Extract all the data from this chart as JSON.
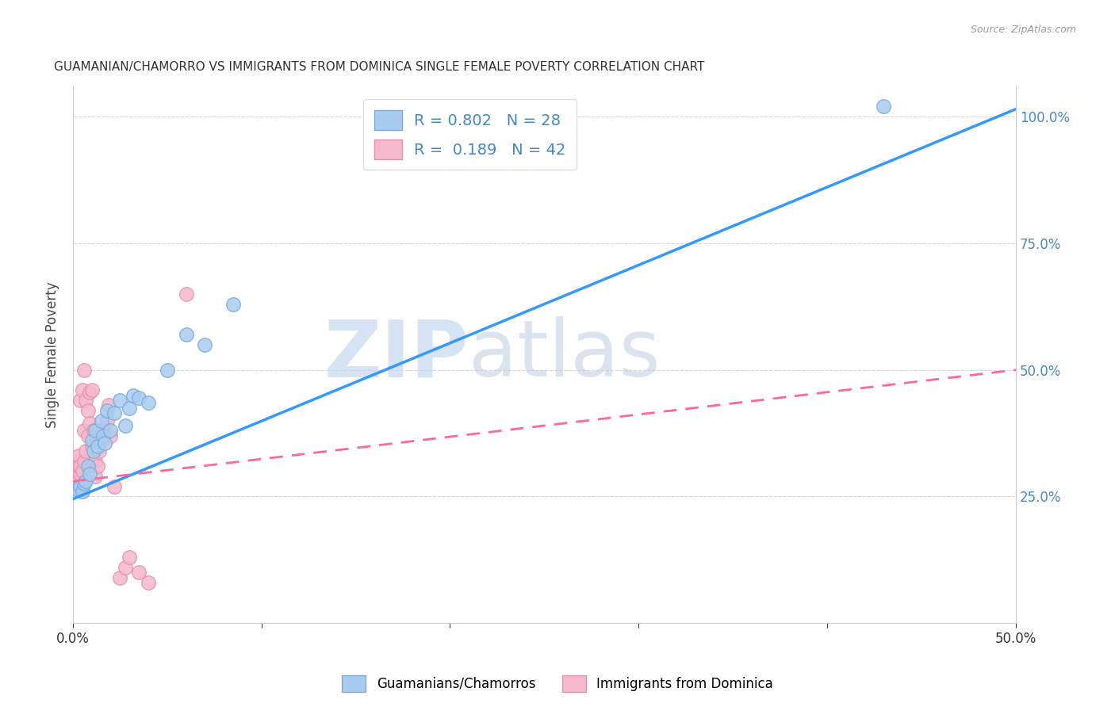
{
  "title": "GUAMANIAN/CHAMORRO VS IMMIGRANTS FROM DOMINICA SINGLE FEMALE POVERTY CORRELATION CHART",
  "source": "Source: ZipAtlas.com",
  "ylabel": "Single Female Poverty",
  "blue_R": 0.802,
  "blue_N": 28,
  "pink_R": 0.189,
  "pink_N": 42,
  "blue_color": "#A8CCF0",
  "blue_edge": "#7AAADA",
  "pink_color": "#F5B8CC",
  "pink_edge": "#E890AA",
  "blue_line_color": "#3399FF",
  "pink_line_color": "#FF6699",
  "watermark_zip": "ZIP",
  "watermark_atlas": "atlas",
  "legend_blue_label": "Guamanians/Chamorros",
  "legend_pink_label": "Immigrants from Dominica",
  "blue_x": [
    0.002,
    0.004,
    0.005,
    0.006,
    0.007,
    0.008,
    0.009,
    0.01,
    0.011,
    0.012,
    0.013,
    0.015,
    0.016,
    0.017,
    0.018,
    0.02,
    0.022,
    0.025,
    0.028,
    0.03,
    0.032,
    0.035,
    0.04,
    0.05,
    0.06,
    0.07,
    0.085,
    0.43
  ],
  "blue_y": [
    0.265,
    0.27,
    0.26,
    0.275,
    0.28,
    0.31,
    0.295,
    0.36,
    0.34,
    0.38,
    0.35,
    0.4,
    0.37,
    0.355,
    0.42,
    0.38,
    0.415,
    0.44,
    0.39,
    0.425,
    0.45,
    0.445,
    0.435,
    0.5,
    0.57,
    0.55,
    0.63,
    1.02
  ],
  "pink_x": [
    0.001,
    0.001,
    0.002,
    0.002,
    0.002,
    0.003,
    0.003,
    0.003,
    0.004,
    0.004,
    0.004,
    0.005,
    0.005,
    0.005,
    0.006,
    0.006,
    0.006,
    0.007,
    0.007,
    0.008,
    0.008,
    0.009,
    0.009,
    0.01,
    0.01,
    0.011,
    0.012,
    0.012,
    0.013,
    0.014,
    0.015,
    0.016,
    0.018,
    0.019,
    0.02,
    0.022,
    0.025,
    0.028,
    0.03,
    0.035,
    0.04,
    0.06
  ],
  "pink_y": [
    0.27,
    0.285,
    0.29,
    0.3,
    0.32,
    0.28,
    0.31,
    0.33,
    0.295,
    0.31,
    0.44,
    0.27,
    0.3,
    0.46,
    0.32,
    0.38,
    0.5,
    0.34,
    0.44,
    0.37,
    0.42,
    0.395,
    0.455,
    0.35,
    0.46,
    0.38,
    0.29,
    0.32,
    0.31,
    0.34,
    0.36,
    0.38,
    0.4,
    0.43,
    0.37,
    0.27,
    0.09,
    0.11,
    0.13,
    0.1,
    0.08,
    0.65
  ],
  "blue_line_x0": 0.0,
  "blue_line_y0": 0.245,
  "blue_line_x1": 0.5,
  "blue_line_y1": 1.015,
  "pink_line_x0": 0.0,
  "pink_line_y0": 0.28,
  "pink_line_x1": 0.5,
  "pink_line_y1": 0.5,
  "xlim": [
    0.0,
    0.5
  ],
  "ylim": [
    0.0,
    1.06
  ],
  "background_color": "#FFFFFF",
  "grid_color": "#CCCCCC"
}
